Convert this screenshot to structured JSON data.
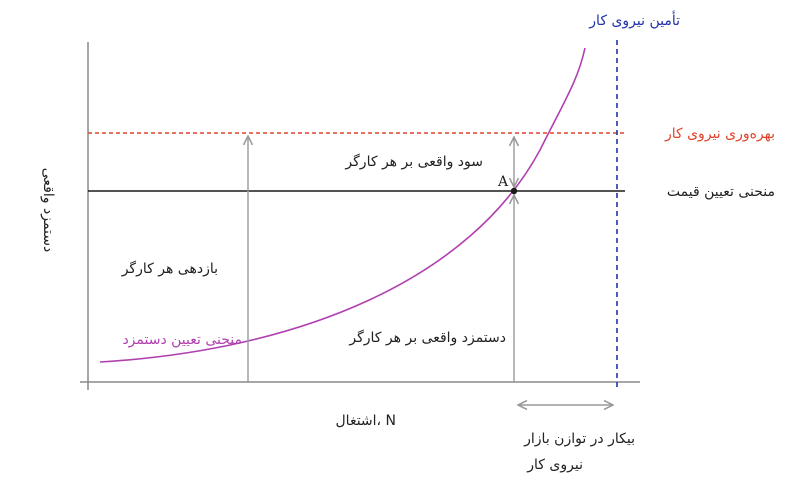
{
  "diagram": {
    "y_axis_label": "دستمزد واقعی",
    "x_axis_label": "اشتغال، N",
    "labour_supply_label": "تأمین نیروی کار",
    "productivity_label": "بهره‌وری نیروی کار",
    "price_setting_label": "منحنی تعیین قیمت",
    "wage_setting_label": "منحنی تعیین دستمزد",
    "profit_label": "سود واقعی بر هر کارگر",
    "return_label": "بازدهی هر کارگر",
    "wage_label": "دستمزد واقعی بر هر کارگر",
    "point_label": "A",
    "unemployment_label_line1": "بیکار در توازن بازار",
    "unemployment_label_line2": "نیروی کار",
    "colors": {
      "axis": "#8a8a8a",
      "price_line": "#1a1a1a",
      "productivity_line": "#e0442c",
      "supply_line": "#2233aa",
      "wage_curve": "#b040b0",
      "arrow": "#999999",
      "text": "#222222"
    }
  }
}
